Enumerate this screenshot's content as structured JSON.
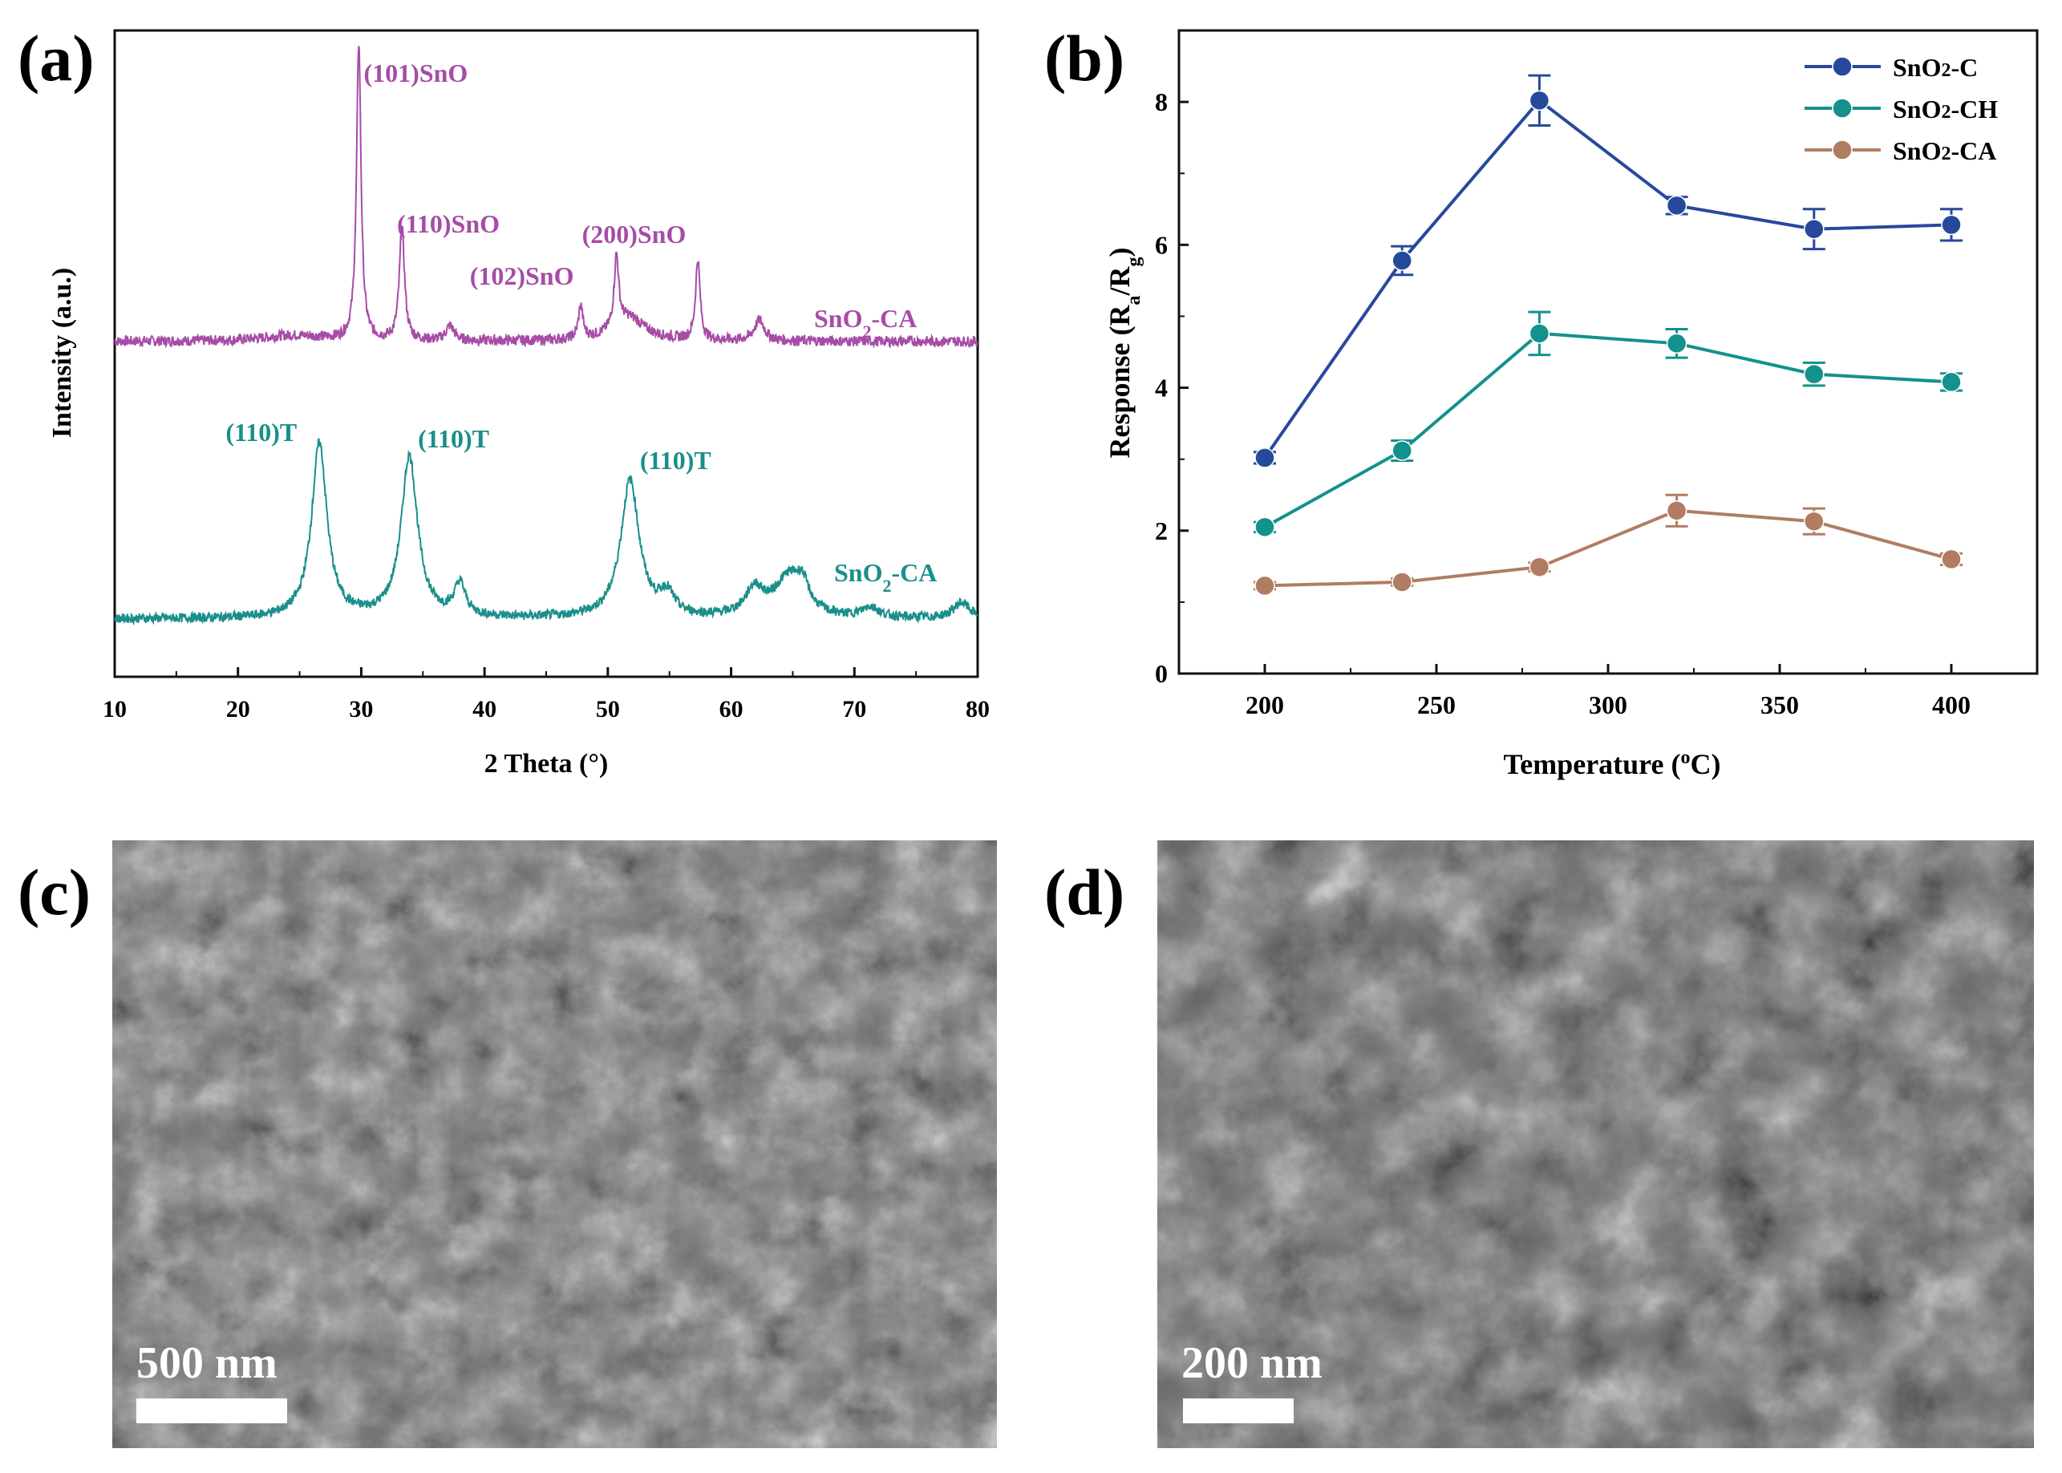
{
  "panels": {
    "a_label": "(a)",
    "b_label": "(b)",
    "c_label": "(c)",
    "d_label": "(d)"
  },
  "sem": {
    "c_scale": "500 nm",
    "d_scale": "200 nm"
  },
  "chart_data": [
    {
      "type": "line",
      "panel": "a",
      "xlabel": "2 Theta (°)",
      "ylabel": "Intensity (a.u.)",
      "xlim": [
        10,
        80
      ],
      "xticks": [
        "10",
        "20",
        "30",
        "40",
        "50",
        "60",
        "70",
        "80"
      ],
      "yticks_shown": false,
      "grid": false,
      "series": [
        {
          "name": "SnO2-CA",
          "label_main": "SnO",
          "label_sub": "2",
          "label_tail": "-CA",
          "color": "#a64ca6",
          "baseline": 0.06,
          "peaks": [
            {
              "x": 24.5,
              "h": 0.02,
              "w": 3.0
            },
            {
              "x": 29.8,
              "h": 1.0,
              "w": 0.22
            },
            {
              "x": 33.3,
              "h": 0.38,
              "w": 0.25
            },
            {
              "x": 37.2,
              "h": 0.05,
              "w": 0.4
            },
            {
              "x": 47.8,
              "h": 0.11,
              "w": 0.22
            },
            {
              "x": 50.7,
              "h": 0.24,
              "w": 0.22
            },
            {
              "x": 51.7,
              "h": 0.08,
              "w": 1.6
            },
            {
              "x": 57.3,
              "h": 0.27,
              "w": 0.22
            },
            {
              "x": 62.3,
              "h": 0.07,
              "w": 0.5
            }
          ]
        },
        {
          "name": "SnO2-CA",
          "label_main": "SnO",
          "label_sub": "2",
          "label_tail": "-CA",
          "color": "#1a8f8a",
          "baseline": 0.0,
          "peaks": [
            {
              "x": 26.6,
              "h": 0.66,
              "w": 0.75
            },
            {
              "x": 33.9,
              "h": 0.61,
              "w": 0.8
            },
            {
              "x": 38.0,
              "h": 0.12,
              "w": 0.55
            },
            {
              "x": 51.8,
              "h": 0.52,
              "w": 0.9
            },
            {
              "x": 54.8,
              "h": 0.08,
              "w": 0.7
            },
            {
              "x": 61.9,
              "h": 0.1,
              "w": 0.9
            },
            {
              "x": 64.7,
              "h": 0.15,
              "w": 1.4
            },
            {
              "x": 65.8,
              "h": 0.08,
              "w": 0.6
            },
            {
              "x": 71.3,
              "h": 0.04,
              "w": 0.8
            },
            {
              "x": 78.7,
              "h": 0.06,
              "w": 0.8
            }
          ]
        }
      ],
      "annotations": [
        {
          "text": "(101)SnO",
          "x": 30.2,
          "series": 0
        },
        {
          "text": "(110)SnO",
          "x": 32.9,
          "series": 0
        },
        {
          "text": "(102)SnO",
          "x": 38.8,
          "series": 0
        },
        {
          "text": "(200)SnO",
          "x": 47.9,
          "series": 0
        },
        {
          "text": "(110)T",
          "x": 19.0,
          "series": 1
        },
        {
          "text": "(110)T",
          "x": 34.6,
          "series": 1
        },
        {
          "text": "(110)T",
          "x": 52.6,
          "series": 1
        }
      ]
    },
    {
      "type": "line",
      "panel": "b",
      "xlabel": "Temperature (°C)",
      "xlabel_pre": "Temperature (",
      "xlabel_sup": "o",
      "xlabel_post": "C)",
      "ylabel_pre": "Response (R",
      "ylabel_sub1": "a",
      "ylabel_mid": "/R",
      "ylabel_sub2": "g",
      "ylabel_post": ")",
      "xlim": [
        175,
        425
      ],
      "ylim": [
        0,
        9
      ],
      "xticks": [
        200,
        250,
        300,
        350,
        400
      ],
      "yticks": [
        0,
        2,
        4,
        6,
        8
      ],
      "grid": false,
      "legend_position": "top-right",
      "x": [
        200,
        240,
        280,
        320,
        360,
        400
      ],
      "series": [
        {
          "name": "SnO2-C",
          "label_main": "SnO",
          "label_sub": "2",
          "label_tail": "-C",
          "color": "#27499c",
          "values": [
            3.02,
            5.78,
            8.02,
            6.55,
            6.22,
            6.28
          ],
          "errors": [
            0.08,
            0.2,
            0.35,
            0.12,
            0.28,
            0.22
          ]
        },
        {
          "name": "SnO2-CH",
          "label_main": "SnO",
          "label_sub": "2",
          "label_tail": "-CH",
          "color": "#13918c",
          "values": [
            2.05,
            3.12,
            4.76,
            4.62,
            4.19,
            4.08
          ],
          "errors": [
            0.07,
            0.14,
            0.3,
            0.2,
            0.16,
            0.12
          ]
        },
        {
          "name": "SnO2-CA",
          "label_main": "SnO",
          "label_sub": "2",
          "label_tail": "-CA",
          "color": "#b07d62",
          "values": [
            1.23,
            1.28,
            1.49,
            2.28,
            2.13,
            1.6
          ],
          "errors": [
            0.05,
            0.05,
            0.06,
            0.22,
            0.18,
            0.08
          ]
        }
      ]
    }
  ]
}
